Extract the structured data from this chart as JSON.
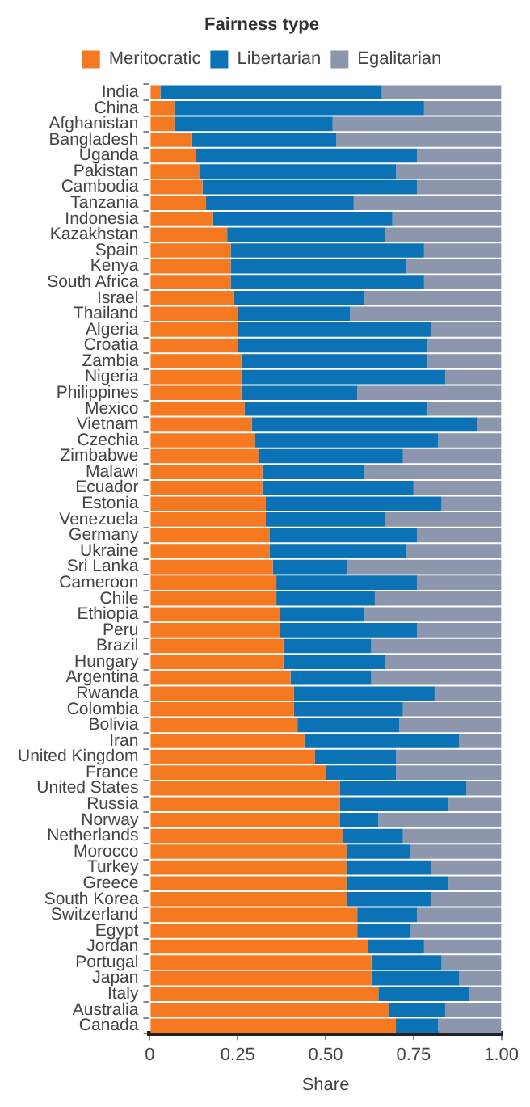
{
  "chart_data": {
    "type": "bar",
    "orientation": "horizontal",
    "stacked": true,
    "xlabel": "Share",
    "legend_title": "Fairness type",
    "legend": "top",
    "grid": false,
    "categories": [
      "India",
      "China",
      "Afghanistan",
      "Bangladesh",
      "Uganda",
      "Pakistan",
      "Cambodia",
      "Tanzania",
      "Indonesia",
      "Kazakhstan",
      "Spain",
      "Kenya",
      "South Africa",
      "Israel",
      "Thailand",
      "Algeria",
      "Croatia",
      "Zambia",
      "Nigeria",
      "Philippines",
      "Mexico",
      "Vietnam",
      "Czechia",
      "Zimbabwe",
      "Malawi",
      "Ecuador",
      "Estonia",
      "Venezuela",
      "Germany",
      "Ukraine",
      "Sri Lanka",
      "Cameroon",
      "Chile",
      "Ethiopia",
      "Peru",
      "Brazil",
      "Hungary",
      "Argentina",
      "Rwanda",
      "Colombia",
      "Bolivia",
      "Iran",
      "United Kingdom",
      "France",
      "United States",
      "Russia",
      "Norway",
      "Netherlands",
      "Morocco",
      "Turkey",
      "Greece",
      "South Korea",
      "Switzerland",
      "Egypt",
      "Jordan",
      "Portugal",
      "Japan",
      "Italy",
      "Australia",
      "Canada"
    ],
    "xlim": [
      0,
      1
    ],
    "xticks": [
      {
        "value": 0,
        "label": "0"
      },
      {
        "value": 0.25,
        "label": "0.25"
      },
      {
        "value": 0.5,
        "label": "0.50"
      },
      {
        "value": 0.75,
        "label": "0.75"
      },
      {
        "value": 1,
        "label": "1.00"
      }
    ],
    "series": [
      {
        "name": "Meritocratic",
        "color": "#f47920",
        "values": [
          0.03,
          0.07,
          0.07,
          0.12,
          0.13,
          0.14,
          0.15,
          0.16,
          0.18,
          0.22,
          0.23,
          0.23,
          0.23,
          0.24,
          0.25,
          0.25,
          0.25,
          0.26,
          0.26,
          0.26,
          0.27,
          0.29,
          0.3,
          0.31,
          0.32,
          0.32,
          0.33,
          0.33,
          0.34,
          0.34,
          0.35,
          0.36,
          0.36,
          0.37,
          0.37,
          0.38,
          0.38,
          0.4,
          0.41,
          0.41,
          0.42,
          0.44,
          0.47,
          0.5,
          0.54,
          0.54,
          0.54,
          0.55,
          0.56,
          0.56,
          0.56,
          0.56,
          0.59,
          0.59,
          0.62,
          0.63,
          0.63,
          0.65,
          0.68,
          0.7
        ]
      },
      {
        "name": "Libertarian",
        "color": "#0a72b5",
        "values": [
          0.63,
          0.71,
          0.45,
          0.41,
          0.63,
          0.56,
          0.61,
          0.42,
          0.51,
          0.45,
          0.55,
          0.5,
          0.55,
          0.37,
          0.32,
          0.55,
          0.54,
          0.53,
          0.58,
          0.33,
          0.52,
          0.64,
          0.52,
          0.41,
          0.29,
          0.43,
          0.5,
          0.34,
          0.42,
          0.39,
          0.21,
          0.4,
          0.28,
          0.24,
          0.39,
          0.25,
          0.29,
          0.23,
          0.4,
          0.31,
          0.29,
          0.44,
          0.23,
          0.2,
          0.36,
          0.31,
          0.11,
          0.17,
          0.18,
          0.24,
          0.29,
          0.24,
          0.17,
          0.15,
          0.16,
          0.2,
          0.25,
          0.26,
          0.16,
          0.12
        ]
      },
      {
        "name": "Egalitarian",
        "color": "#8c96ad",
        "values": [
          0.34,
          0.22,
          0.48,
          0.47,
          0.24,
          0.3,
          0.24,
          0.42,
          0.31,
          0.33,
          0.22,
          0.27,
          0.22,
          0.39,
          0.43,
          0.2,
          0.21,
          0.21,
          0.16,
          0.41,
          0.21,
          0.07,
          0.18,
          0.28,
          0.39,
          0.25,
          0.17,
          0.33,
          0.24,
          0.27,
          0.44,
          0.24,
          0.36,
          0.39,
          0.24,
          0.37,
          0.33,
          0.37,
          0.19,
          0.28,
          0.29,
          0.12,
          0.3,
          0.3,
          0.1,
          0.15,
          0.35,
          0.28,
          0.26,
          0.2,
          0.15,
          0.2,
          0.24,
          0.26,
          0.22,
          0.17,
          0.12,
          0.09,
          0.16,
          0.18
        ]
      }
    ]
  }
}
